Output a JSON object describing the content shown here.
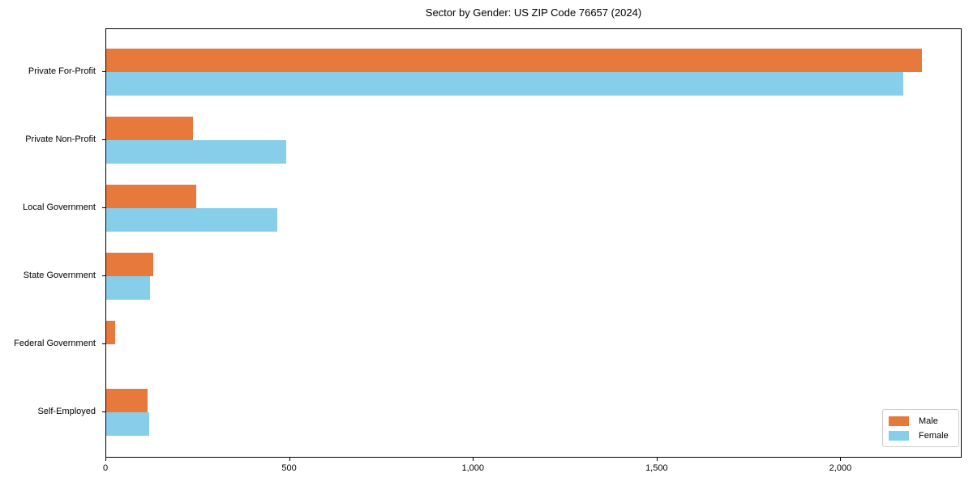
{
  "chart_data": {
    "type": "bar",
    "orientation": "horizontal",
    "title": "Sector by Gender: US ZIP Code 76657 (2024)",
    "categories": [
      "Private For-Profit",
      "Private Non-Profit",
      "Local Government",
      "State Government",
      "Federal Government",
      "Self-Employed"
    ],
    "series": [
      {
        "name": "Male",
        "color": "#E8793D",
        "values": [
          2220,
          235,
          245,
          127,
          24,
          112
        ]
      },
      {
        "name": "Female",
        "color": "#87CEEB",
        "values": [
          2170,
          490,
          465,
          119,
          0,
          117
        ]
      }
    ],
    "xlim": [
      0,
      2330
    ],
    "xticks": [
      0,
      500,
      1000,
      1500,
      2000
    ],
    "xtick_labels": [
      "0",
      "500",
      "1,000",
      "1,500",
      "2,000"
    ],
    "grid": false,
    "legend_position": "lower right",
    "xlabel": "",
    "ylabel": ""
  },
  "colors": {
    "male": "#E8793D",
    "female": "#87CEEB",
    "axis": "#000000",
    "background": "#FFFFFF",
    "legend_border": "#CCCCCC"
  }
}
